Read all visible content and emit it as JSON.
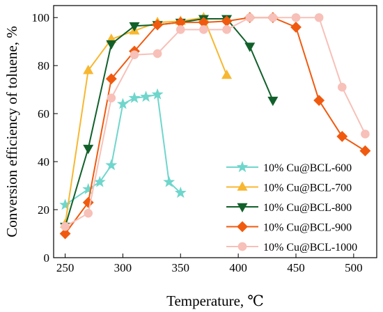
{
  "chart_data": {
    "type": "line",
    "xlabel": "Temperature, ℃",
    "ylabel": "Conversion efficiency of toluene, %",
    "xlim": [
      240,
      520
    ],
    "ylim": [
      0,
      105
    ],
    "xticks": [
      250,
      300,
      350,
      400,
      450,
      500
    ],
    "yticks": [
      0,
      20,
      40,
      60,
      80,
      100
    ],
    "legend_position": "bottom-right",
    "grid": false,
    "series": [
      {
        "name": "10% Cu@BCL-600",
        "color": "#6fd6cc",
        "marker": "star",
        "x": [
          250,
          270,
          280,
          290,
          300,
          310,
          320,
          330,
          340,
          350
        ],
        "y": [
          22,
          28.5,
          31.5,
          38.5,
          64,
          66.5,
          67,
          68,
          31.5,
          27
        ]
      },
      {
        "name": "10% Cu@BCL-700",
        "color": "#f7b731",
        "marker": "triangle-up",
        "x": [
          250,
          270,
          290,
          310,
          330,
          350,
          370,
          390
        ],
        "y": [
          14,
          78,
          91,
          94.5,
          98,
          98.5,
          100,
          76
        ]
      },
      {
        "name": "10% Cu@BCL-800",
        "color": "#11602a",
        "marker": "triangle-down",
        "x": [
          250,
          270,
          290,
          310,
          330,
          350,
          370,
          390,
          410,
          430
        ],
        "y": [
          13,
          45.5,
          89,
          96.5,
          97,
          98,
          99.5,
          99.5,
          88,
          65.5
        ]
      },
      {
        "name": "10% Cu@BCL-900",
        "color": "#f05a0f",
        "marker": "diamond",
        "x": [
          250,
          270,
          290,
          310,
          330,
          350,
          370,
          390,
          410,
          430,
          450,
          470,
          490,
          510
        ],
        "y": [
          10,
          23,
          74.5,
          86,
          97,
          98,
          98,
          98.5,
          100,
          100,
          96,
          65.5,
          50.5,
          44.5
        ]
      },
      {
        "name": "10% Cu@BCL-1000",
        "color": "#f7c0b8",
        "marker": "circle",
        "x": [
          250,
          270,
          290,
          310,
          330,
          350,
          370,
          390,
          410,
          430,
          450,
          470,
          490,
          510
        ],
        "y": [
          13,
          18.5,
          66.5,
          84.5,
          85,
          95,
          95,
          95,
          100,
          100,
          100,
          100,
          71,
          51.5
        ]
      }
    ]
  }
}
